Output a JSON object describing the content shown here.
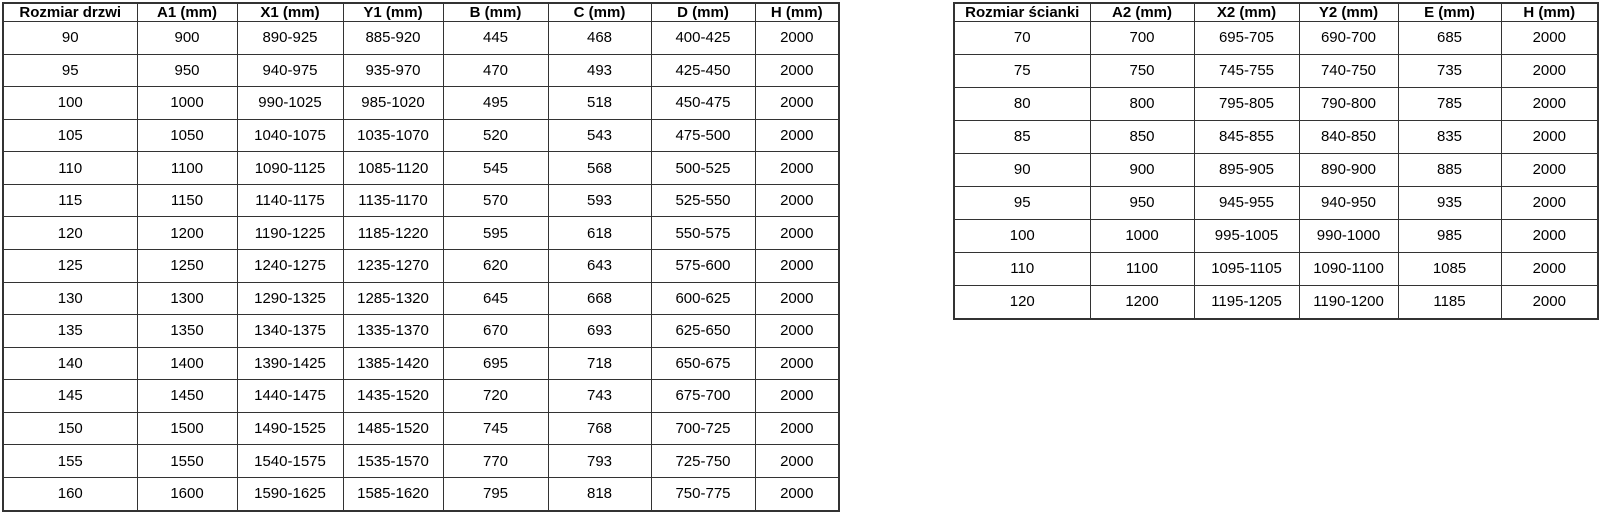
{
  "tables": [
    {
      "id": "door-size-table",
      "title_column": "Rozmiar drzwi",
      "headers": [
        "Rozmiar drzwi",
        "A1 (mm)",
        "X1 (mm)",
        "Y1 (mm)",
        "B (mm)",
        "C (mm)",
        "D (mm)",
        "H (mm)"
      ],
      "rows": [
        [
          "90",
          "900",
          "890-925",
          "885-920",
          "445",
          "468",
          "400-425",
          "2000"
        ],
        [
          "95",
          "950",
          "940-975",
          "935-970",
          "470",
          "493",
          "425-450",
          "2000"
        ],
        [
          "100",
          "1000",
          "990-1025",
          "985-1020",
          "495",
          "518",
          "450-475",
          "2000"
        ],
        [
          "105",
          "1050",
          "1040-1075",
          "1035-1070",
          "520",
          "543",
          "475-500",
          "2000"
        ],
        [
          "110",
          "1100",
          "1090-1125",
          "1085-1120",
          "545",
          "568",
          "500-525",
          "2000"
        ],
        [
          "115",
          "1150",
          "1140-1175",
          "1135-1170",
          "570",
          "593",
          "525-550",
          "2000"
        ],
        [
          "120",
          "1200",
          "1190-1225",
          "1185-1220",
          "595",
          "618",
          "550-575",
          "2000"
        ],
        [
          "125",
          "1250",
          "1240-1275",
          "1235-1270",
          "620",
          "643",
          "575-600",
          "2000"
        ],
        [
          "130",
          "1300",
          "1290-1325",
          "1285-1320",
          "645",
          "668",
          "600-625",
          "2000"
        ],
        [
          "135",
          "1350",
          "1340-1375",
          "1335-1370",
          "670",
          "693",
          "625-650",
          "2000"
        ],
        [
          "140",
          "1400",
          "1390-1425",
          "1385-1420",
          "695",
          "718",
          "650-675",
          "2000"
        ],
        [
          "145",
          "1450",
          "1440-1475",
          "1435-1520",
          "720",
          "743",
          "675-700",
          "2000"
        ],
        [
          "150",
          "1500",
          "1490-1525",
          "1485-1520",
          "745",
          "768",
          "700-725",
          "2000"
        ],
        [
          "155",
          "1550",
          "1540-1575",
          "1535-1570",
          "770",
          "793",
          "725-750",
          "2000"
        ],
        [
          "160",
          "1600",
          "1590-1625",
          "1585-1620",
          "795",
          "818",
          "750-775",
          "2000"
        ]
      ]
    },
    {
      "id": "wall-size-table",
      "title_column": "Rozmiar ścianki",
      "headers": [
        "Rozmiar ścianki",
        "A2 (mm)",
        "X2 (mm)",
        "Y2 (mm)",
        "E (mm)",
        "H (mm)"
      ],
      "rows": [
        [
          "70",
          "700",
          "695-705",
          "690-700",
          "685",
          "2000"
        ],
        [
          "75",
          "750",
          "745-755",
          "740-750",
          "735",
          "2000"
        ],
        [
          "80",
          "800",
          "795-805",
          "790-800",
          "785",
          "2000"
        ],
        [
          "85",
          "850",
          "845-855",
          "840-850",
          "835",
          "2000"
        ],
        [
          "90",
          "900",
          "895-905",
          "890-900",
          "885",
          "2000"
        ],
        [
          "95",
          "950",
          "945-955",
          "940-950",
          "935",
          "2000"
        ],
        [
          "100",
          "1000",
          "995-1005",
          "990-1000",
          "985",
          "2000"
        ],
        [
          "110",
          "1100",
          "1095-1105",
          "1090-1100",
          "1085",
          "2000"
        ],
        [
          "120",
          "1200",
          "1195-1205",
          "1190-1200",
          "1185",
          "2000"
        ]
      ]
    }
  ],
  "colors": {
    "border": "#333333",
    "text": "#000000",
    "background": "#ffffff"
  }
}
